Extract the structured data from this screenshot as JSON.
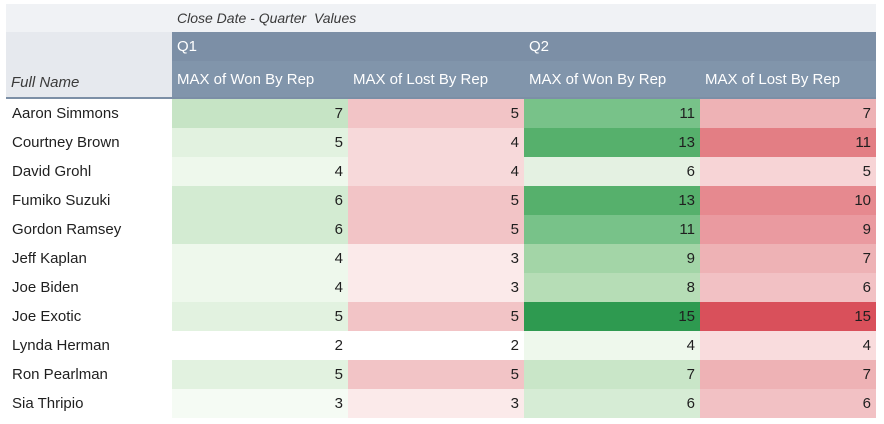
{
  "header": {
    "col_field_label": "Close Date - Quarter",
    "values_label": "Values",
    "row_field_label": "Full Name",
    "quarters": [
      "Q1",
      "Q2"
    ],
    "measures": [
      "MAX of Won By Rep",
      "MAX of Lost By Rep",
      "MAX of Won By Rep",
      "MAX of Lost By Rep"
    ]
  },
  "colors": {
    "header_bg": "#7c8fa6",
    "won_scale_max": "#2e9a50",
    "lost_scale_max": "#d9505b"
  },
  "rows": [
    {
      "name": "Aaron Simmons",
      "values": [
        7,
        5,
        11,
        7
      ],
      "colors": [
        "#c6e4c5",
        "#f2c4c6",
        "#78c289",
        "#eeb2b5"
      ]
    },
    {
      "name": "Courtney Brown",
      "values": [
        5,
        4,
        13,
        11
      ],
      "colors": [
        "#e2f2e0",
        "#f7d9da",
        "#56b06c",
        "#e37e84"
      ]
    },
    {
      "name": "David Grohl",
      "values": [
        4,
        4,
        6,
        5
      ],
      "colors": [
        "#eef8ec",
        "#f7d9da",
        "#e4f1e2",
        "#f7d4d6"
      ]
    },
    {
      "name": "Fumiko Suzuki",
      "values": [
        6,
        5,
        13,
        10
      ],
      "colors": [
        "#d3ebd2",
        "#f2c4c6",
        "#56b06c",
        "#e6898f"
      ]
    },
    {
      "name": "Gordon Ramsey",
      "values": [
        6,
        5,
        11,
        9
      ],
      "colors": [
        "#d3ebd2",
        "#f2c4c6",
        "#78c289",
        "#ea9aa0"
      ]
    },
    {
      "name": "Jeff Kaplan",
      "values": [
        4,
        3,
        9,
        7
      ],
      "colors": [
        "#eef8ec",
        "#fbeaea",
        "#a3d5a7",
        "#eeb2b5"
      ]
    },
    {
      "name": "Joe Biden",
      "values": [
        4,
        3,
        8,
        6
      ],
      "colors": [
        "#eef8ec",
        "#fbeaea",
        "#b6ddb6",
        "#f2c1c4"
      ]
    },
    {
      "name": "Joe Exotic",
      "values": [
        5,
        5,
        15,
        15
      ],
      "colors": [
        "#e2f2e0",
        "#f2c4c6",
        "#2e9a50",
        "#d9505b"
      ]
    },
    {
      "name": "Lynda Herman",
      "values": [
        2,
        2,
        4,
        4
      ],
      "colors": [
        "#ffffff",
        "#ffffff",
        "#eef8ec",
        "#f9dcdd"
      ]
    },
    {
      "name": "Ron Pearlman",
      "values": [
        5,
        5,
        7,
        7
      ],
      "colors": [
        "#e2f2e0",
        "#f2c4c6",
        "#c9e6c8",
        "#eeb2b5"
      ]
    },
    {
      "name": "Sia Thripio",
      "values": [
        3,
        3,
        6,
        6
      ],
      "colors": [
        "#f5fbf4",
        "#fbeaea",
        "#d6ecd5",
        "#f2c1c4"
      ]
    }
  ]
}
